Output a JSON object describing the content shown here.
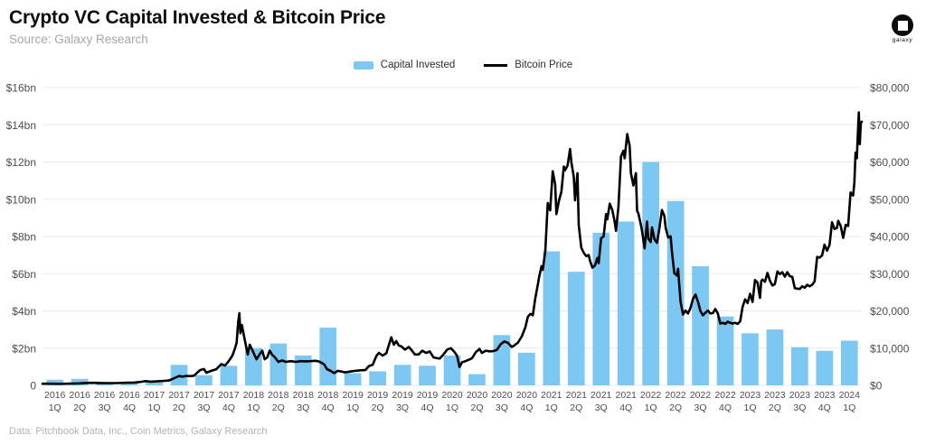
{
  "header": {
    "title": "Crypto VC Capital Invested & Bitcoin Price",
    "source": "Source: Galaxy Research"
  },
  "logo": {
    "label": "galaxy"
  },
  "footer": {
    "text": "Data: Pitchbook Data, Inc., Coin Metrics, Galaxy Research"
  },
  "chart_data": {
    "type": "bar+line",
    "title": "Crypto VC Capital Invested & Bitcoin Price",
    "legend_position": "top",
    "grid": true,
    "colors": {
      "bar": "#7dc7f3",
      "line": "#000000",
      "grid": "#e9e9e9"
    },
    "categories": [
      "2016 1Q",
      "2016 2Q",
      "2016 3Q",
      "2016 4Q",
      "2017 1Q",
      "2017 2Q",
      "2017 3Q",
      "2017 4Q",
      "2018 1Q",
      "2018 2Q",
      "2018 3Q",
      "2018 4Q",
      "2019 1Q",
      "2019 2Q",
      "2019 3Q",
      "2019 4Q",
      "2020 1Q",
      "2020 2Q",
      "2020 3Q",
      "2020 4Q",
      "2021 1Q",
      "2021 2Q",
      "2021 3Q",
      "2021 4Q",
      "2022 1Q",
      "2022 2Q",
      "2022 3Q",
      "2022 4Q",
      "2023 1Q",
      "2023 2Q",
      "2023 3Q",
      "2023 4Q",
      "2024 1Q"
    ],
    "left_axis": {
      "label": "Capital Invested",
      "min": 0,
      "max": 16,
      "unit": "USD bn",
      "ticks": [
        "$16bn",
        "$14bn",
        "$12bn",
        "$10bn",
        "$8bn",
        "$6bn",
        "$4bn",
        "$2bn",
        "0"
      ]
    },
    "right_axis": {
      "label": "Bitcoin Price",
      "min": 0,
      "max": 80000,
      "unit": "USD",
      "ticks": [
        "$80,000",
        "$70,000",
        "$60,000",
        "$50,000",
        "$40,000",
        "$30,000",
        "$20,000",
        "$10,000",
        "$0"
      ]
    },
    "series": [
      {
        "name": "Capital Invested",
        "type": "bar",
        "axis": "left",
        "unit": "USD bn",
        "values": [
          0.3,
          0.35,
          0.15,
          0.1,
          0.15,
          1.1,
          0.55,
          1.05,
          2.0,
          2.25,
          1.6,
          3.1,
          0.65,
          0.75,
          1.1,
          1.05,
          1.6,
          0.6,
          2.7,
          1.75,
          7.2,
          6.1,
          8.2,
          8.8,
          12.0,
          9.9,
          6.4,
          3.7,
          2.8,
          3.0,
          2.05,
          1.85,
          2.4
        ]
      },
      {
        "name": "Bitcoin Price",
        "type": "line",
        "axis": "right",
        "unit": "USD",
        "points": [
          [
            0,
            430
          ],
          [
            0.35,
            425
          ],
          [
            0.7,
            418
          ],
          [
            1,
            447
          ],
          [
            1.5,
            530
          ],
          [
            1.8,
            665
          ],
          [
            2.05,
            670
          ],
          [
            2.3,
            640
          ],
          [
            2.6,
            610
          ],
          [
            3,
            615
          ],
          [
            3.4,
            700
          ],
          [
            3.7,
            740
          ],
          [
            4,
            960
          ],
          [
            4.15,
            1130
          ],
          [
            4.35,
            990
          ],
          [
            4.6,
            1070
          ],
          [
            4.9,
            1180
          ],
          [
            5.1,
            1300
          ],
          [
            5.35,
            2050
          ],
          [
            5.5,
            2500
          ],
          [
            5.65,
            2350
          ],
          [
            5.8,
            2550
          ],
          [
            5.95,
            2480
          ],
          [
            6.1,
            2600
          ],
          [
            6.35,
            4100
          ],
          [
            6.5,
            4400
          ],
          [
            6.6,
            3400
          ],
          [
            6.8,
            3900
          ],
          [
            7,
            4350
          ],
          [
            7.2,
            5700
          ],
          [
            7.35,
            5300
          ],
          [
            7.5,
            6500
          ],
          [
            7.65,
            8000
          ],
          [
            7.75,
            9900
          ],
          [
            7.82,
            11500
          ],
          [
            7.88,
            16800
          ],
          [
            7.93,
            19400
          ],
          [
            7.97,
            14000
          ],
          [
            8.03,
            16200
          ],
          [
            8.1,
            13800
          ],
          [
            8.2,
            10500
          ],
          [
            8.27,
            8300
          ],
          [
            8.35,
            10900
          ],
          [
            8.45,
            9500
          ],
          [
            8.55,
            8000
          ],
          [
            8.62,
            7000
          ],
          [
            8.75,
            8400
          ],
          [
            8.85,
            9300
          ],
          [
            8.95,
            7000
          ],
          [
            9.05,
            7500
          ],
          [
            9.15,
            9300
          ],
          [
            9.25,
            8200
          ],
          [
            9.35,
            7600
          ],
          [
            9.5,
            6300
          ],
          [
            9.65,
            6700
          ],
          [
            9.8,
            6300
          ],
          [
            10,
            6500
          ],
          [
            10.2,
            6300
          ],
          [
            10.4,
            6500
          ],
          [
            10.6,
            6450
          ],
          [
            10.8,
            6500
          ],
          [
            11,
            6600
          ],
          [
            11.15,
            6400
          ],
          [
            11.35,
            5600
          ],
          [
            11.45,
            4400
          ],
          [
            11.6,
            3900
          ],
          [
            11.75,
            3300
          ],
          [
            11.9,
            3900
          ],
          [
            12,
            3750
          ],
          [
            12.2,
            3500
          ],
          [
            12.4,
            3700
          ],
          [
            12.6,
            3900
          ],
          [
            12.8,
            4050
          ],
          [
            13,
            4100
          ],
          [
            13.15,
            5200
          ],
          [
            13.3,
            5500
          ],
          [
            13.45,
            7950
          ],
          [
            13.55,
            8700
          ],
          [
            13.7,
            8000
          ],
          [
            13.85,
            8600
          ],
          [
            13.95,
            10800
          ],
          [
            14.05,
            12900
          ],
          [
            14.15,
            10900
          ],
          [
            14.25,
            11900
          ],
          [
            14.35,
            10700
          ],
          [
            14.45,
            10500
          ],
          [
            14.6,
            9600
          ],
          [
            14.75,
            10300
          ],
          [
            14.85,
            9600
          ],
          [
            15,
            8300
          ],
          [
            15.15,
            8300
          ],
          [
            15.3,
            9300
          ],
          [
            15.45,
            8700
          ],
          [
            15.6,
            9100
          ],
          [
            15.75,
            7500
          ],
          [
            15.9,
            7300
          ],
          [
            16,
            7200
          ],
          [
            16.15,
            8300
          ],
          [
            16.3,
            9600
          ],
          [
            16.45,
            10000
          ],
          [
            16.6,
            8900
          ],
          [
            16.7,
            7900
          ],
          [
            16.8,
            4900
          ],
          [
            16.9,
            6200
          ],
          [
            17,
            6400
          ],
          [
            17.15,
            6800
          ],
          [
            17.3,
            7300
          ],
          [
            17.45,
            8900
          ],
          [
            17.6,
            9800
          ],
          [
            17.7,
            8700
          ],
          [
            17.85,
            9300
          ],
          [
            18,
            9150
          ],
          [
            18.15,
            9200
          ],
          [
            18.3,
            9500
          ],
          [
            18.45,
            11000
          ],
          [
            18.6,
            11800
          ],
          [
            18.75,
            11400
          ],
          [
            18.9,
            10300
          ],
          [
            19,
            10700
          ],
          [
            19.15,
            11500
          ],
          [
            19.3,
            13100
          ],
          [
            19.45,
            15600
          ],
          [
            19.55,
            18400
          ],
          [
            19.65,
            19200
          ],
          [
            19.75,
            18800
          ],
          [
            19.85,
            23500
          ],
          [
            19.95,
            27000
          ],
          [
            20,
            29000
          ],
          [
            20.1,
            32000
          ],
          [
            20.15,
            31000
          ],
          [
            20.25,
            36000
          ],
          [
            20.35,
            49000
          ],
          [
            20.45,
            47000
          ],
          [
            20.55,
            57500
          ],
          [
            20.65,
            54000
          ],
          [
            20.7,
            46000
          ],
          [
            20.8,
            49600
          ],
          [
            20.9,
            52000
          ],
          [
            21,
            58800
          ],
          [
            21.05,
            57800
          ],
          [
            21.15,
            59100
          ],
          [
            21.25,
            63500
          ],
          [
            21.3,
            60000
          ],
          [
            21.4,
            56000
          ],
          [
            21.45,
            49700
          ],
          [
            21.55,
            57000
          ],
          [
            21.6,
            43000
          ],
          [
            21.7,
            37000
          ],
          [
            21.8,
            35600
          ],
          [
            21.9,
            34700
          ],
          [
            22,
            35000
          ],
          [
            22.05,
            33500
          ],
          [
            22.15,
            31600
          ],
          [
            22.25,
            32200
          ],
          [
            22.35,
            34200
          ],
          [
            22.4,
            32800
          ],
          [
            22.5,
            39500
          ],
          [
            22.6,
            40000
          ],
          [
            22.7,
            46000
          ],
          [
            22.75,
            44600
          ],
          [
            22.85,
            48800
          ],
          [
            22.95,
            47100
          ],
          [
            23.05,
            43800
          ],
          [
            23.1,
            41500
          ],
          [
            23.2,
            48000
          ],
          [
            23.3,
            61500
          ],
          [
            23.4,
            63000
          ],
          [
            23.45,
            61000
          ],
          [
            23.55,
            67500
          ],
          [
            23.65,
            64300
          ],
          [
            23.7,
            57000
          ],
          [
            23.8,
            53700
          ],
          [
            23.9,
            57000
          ],
          [
            23.95,
            46900
          ],
          [
            24,
            46200
          ],
          [
            24.1,
            43100
          ],
          [
            24.15,
            41500
          ],
          [
            24.25,
            36800
          ],
          [
            24.35,
            44000
          ],
          [
            24.4,
            39400
          ],
          [
            24.5,
            38500
          ],
          [
            24.55,
            42400
          ],
          [
            24.65,
            39200
          ],
          [
            24.75,
            38300
          ],
          [
            24.85,
            42200
          ],
          [
            24.95,
            47100
          ],
          [
            25.05,
            45500
          ],
          [
            25.1,
            42300
          ],
          [
            25.2,
            39700
          ],
          [
            25.3,
            40000
          ],
          [
            25.35,
            36000
          ],
          [
            25.45,
            30100
          ],
          [
            25.55,
            29500
          ],
          [
            25.6,
            31300
          ],
          [
            25.7,
            22500
          ],
          [
            25.8,
            19000
          ],
          [
            25.9,
            20100
          ],
          [
            26,
            19300
          ],
          [
            26.1,
            20800
          ],
          [
            26.2,
            23200
          ],
          [
            26.3,
            24400
          ],
          [
            26.4,
            22500
          ],
          [
            26.5,
            20000
          ],
          [
            26.6,
            18800
          ],
          [
            26.7,
            19500
          ],
          [
            26.8,
            20100
          ],
          [
            26.9,
            19300
          ],
          [
            27,
            19400
          ],
          [
            27.1,
            20500
          ],
          [
            27.2,
            19300
          ],
          [
            27.3,
            16600
          ],
          [
            27.4,
            16800
          ],
          [
            27.5,
            16500
          ],
          [
            27.6,
            17100
          ],
          [
            27.7,
            16800
          ],
          [
            27.8,
            16600
          ],
          [
            27.9,
            16800
          ],
          [
            28,
            16500
          ],
          [
            28.1,
            17200
          ],
          [
            28.2,
            21100
          ],
          [
            28.3,
            23100
          ],
          [
            28.4,
            22100
          ],
          [
            28.5,
            24600
          ],
          [
            28.6,
            22400
          ],
          [
            28.7,
            28300
          ],
          [
            28.8,
            27600
          ],
          [
            28.9,
            23500
          ],
          [
            28.95,
            28000
          ],
          [
            29,
            28400
          ],
          [
            29.1,
            27800
          ],
          [
            29.2,
            30200
          ],
          [
            29.3,
            28100
          ],
          [
            29.4,
            26800
          ],
          [
            29.5,
            27200
          ],
          [
            29.6,
            30600
          ],
          [
            29.7,
            29900
          ],
          [
            29.8,
            30400
          ],
          [
            29.9,
            29200
          ],
          [
            30,
            30400
          ],
          [
            30.1,
            29300
          ],
          [
            30.2,
            29200
          ],
          [
            30.3,
            26100
          ],
          [
            30.4,
            26000
          ],
          [
            30.5,
            25900
          ],
          [
            30.6,
            26600
          ],
          [
            30.7,
            26200
          ],
          [
            30.8,
            27000
          ],
          [
            30.9,
            26600
          ],
          [
            31,
            27000
          ],
          [
            31.1,
            27900
          ],
          [
            31.2,
            34500
          ],
          [
            31.3,
            34300
          ],
          [
            31.4,
            34900
          ],
          [
            31.5,
            37800
          ],
          [
            31.6,
            36200
          ],
          [
            31.7,
            37700
          ],
          [
            31.8,
            43800
          ],
          [
            31.9,
            42000
          ],
          [
            32,
            42300
          ],
          [
            32.05,
            44200
          ],
          [
            32.15,
            42800
          ],
          [
            32.25,
            39600
          ],
          [
            32.35,
            43100
          ],
          [
            32.45,
            42800
          ],
          [
            32.55,
            51800
          ],
          [
            32.65,
            51000
          ],
          [
            32.7,
            54500
          ],
          [
            32.75,
            62500
          ],
          [
            32.8,
            61000
          ],
          [
            32.85,
            69000
          ],
          [
            32.88,
            73300
          ],
          [
            32.92,
            64800
          ],
          [
            32.96,
            70500
          ],
          [
            33,
            70800
          ]
        ]
      }
    ]
  }
}
